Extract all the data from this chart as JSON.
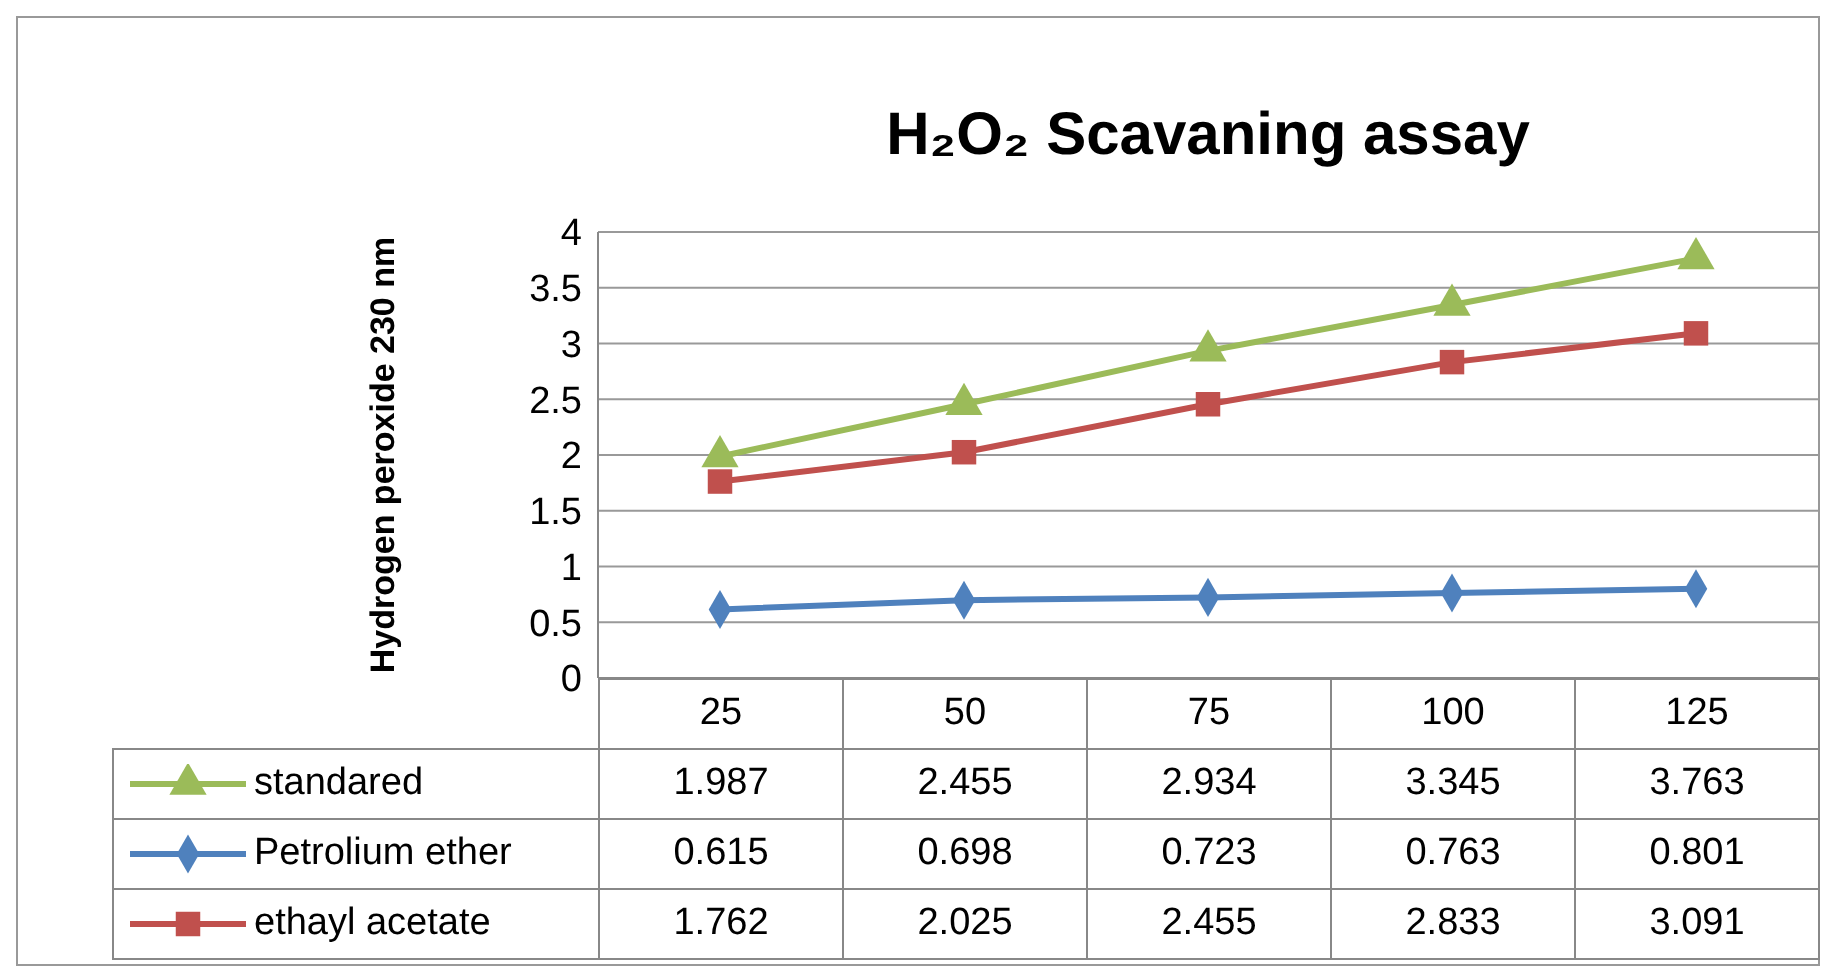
{
  "chart_data": {
    "type": "line",
    "title": "H₂O₂ Scavaning assay",
    "ylabel": "Hydrogen peroxide 230 nm",
    "categories": [
      "25",
      "50",
      "75",
      "100",
      "125"
    ],
    "series": [
      {
        "name": "standared",
        "color": "#9bbb59",
        "marker": "triangle",
        "values": [
          1.987,
          2.455,
          2.934,
          3.345,
          3.763
        ]
      },
      {
        "name": "Petrolium ether",
        "color": "#4f81bd",
        "marker": "diamond",
        "values": [
          0.615,
          0.698,
          0.723,
          0.763,
          0.801
        ]
      },
      {
        "name": "ethayl acetate",
        "color": "#c0504d",
        "marker": "square",
        "values": [
          1.762,
          2.025,
          2.455,
          2.833,
          3.091
        ]
      }
    ],
    "ylim": [
      0,
      4
    ],
    "yticks": [
      0,
      0.5,
      1,
      1.5,
      2,
      2.5,
      3,
      3.5,
      4
    ],
    "grid": "y",
    "legend": "bottom",
    "data_labels": true
  }
}
